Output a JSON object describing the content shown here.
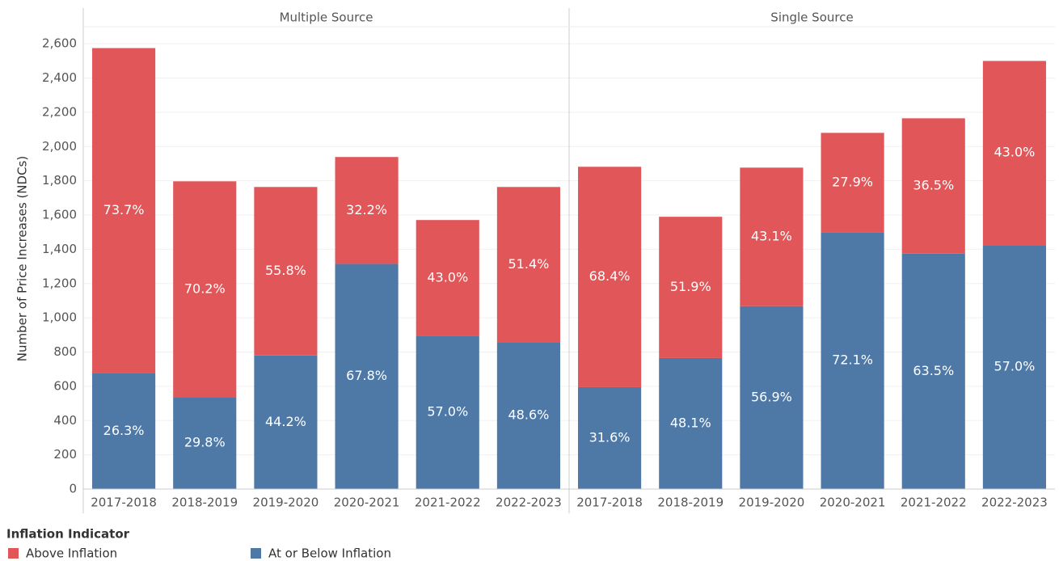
{
  "chart_data": {
    "type": "bar",
    "stacked": true,
    "ylabel": "Number of Price Increases (NDCs)",
    "ylim": [
      0,
      2700
    ],
    "yticks": [
      0,
      200,
      400,
      600,
      800,
      {
        "value": 1000,
        "label": "1,000"
      },
      {
        "value": 1200,
        "label": "1,200"
      },
      {
        "value": 1400,
        "label": "1,400"
      },
      {
        "value": 1600,
        "label": "1,600"
      },
      {
        "value": 1800,
        "label": "1,800"
      },
      {
        "value": 2000,
        "label": "2,000"
      },
      {
        "value": 2200,
        "label": "2,200"
      },
      {
        "value": 2400,
        "label": "2,400"
      },
      {
        "value": 2600,
        "label": "2,600"
      }
    ],
    "grid": true,
    "legend_title": "Inflation Indicator",
    "series": [
      {
        "name": "Above Inflation",
        "color": "#e15759"
      },
      {
        "name": "At or Below Inflation",
        "color": "#4e79a7"
      }
    ],
    "panels": [
      {
        "title": "Multiple Source",
        "categories": [
          "2017-2018",
          "2018-2019",
          "2019-2020",
          "2020-2021",
          "2021-2022",
          "2022-2023"
        ],
        "series": [
          {
            "values": [
              1898,
              1261,
              984,
              624,
              676,
              907
            ],
            "labels": [
              "73.7%",
              "70.2%",
              "55.8%",
              "32.2%",
              "43.0%",
              "51.4%"
            ]
          },
          {
            "values": [
              677,
              536,
              780,
              1315,
              895,
              857
            ],
            "labels": [
              "26.3%",
              "29.8%",
              "44.2%",
              "67.8%",
              "57.0%",
              "48.6%"
            ]
          }
        ]
      },
      {
        "title": "Single Source",
        "categories": [
          "2017-2018",
          "2018-2019",
          "2019-2020",
          "2020-2021",
          "2021-2022",
          "2022-2023"
        ],
        "series": [
          {
            "values": [
              1287,
              825,
              809,
              580,
              790,
              1075
            ],
            "labels": [
              "68.4%",
              "51.9%",
              "43.1%",
              "27.9%",
              "36.5%",
              "43.0%"
            ]
          },
          {
            "values": [
              595,
              765,
              1068,
              1500,
              1375,
              1425
            ],
            "labels": [
              "31.6%",
              "48.1%",
              "56.9%",
              "72.1%",
              "63.5%",
              "57.0%"
            ]
          }
        ]
      }
    ]
  }
}
